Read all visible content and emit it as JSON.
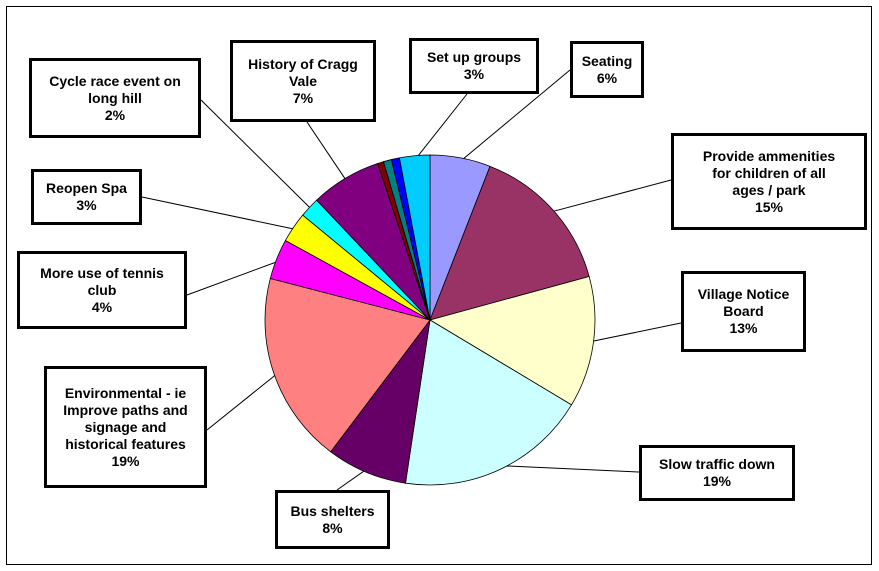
{
  "chart_data": {
    "type": "pie",
    "title": "",
    "start_angle_deg": 90,
    "direction": "clockwise",
    "slices": [
      {
        "label_lines": [
          "Seating"
        ],
        "pct_label": "6%",
        "value": 6,
        "color": "#9999ff"
      },
      {
        "label_lines": [
          "Provide ammenities",
          "for children of all",
          "ages / park"
        ],
        "pct_label": "15%",
        "value": 15,
        "color": "#993366"
      },
      {
        "label_lines": [
          "Village Notice",
          "Board"
        ],
        "pct_label": "13%",
        "value": 13,
        "color": "#ffffcc"
      },
      {
        "label_lines": [
          "Slow traffic down"
        ],
        "pct_label": "19%",
        "value": 19,
        "color": "#ccffff"
      },
      {
        "label_lines": [
          "Bus shelters"
        ],
        "pct_label": "8%",
        "value": 8,
        "color": "#660066"
      },
      {
        "label_lines": [
          "Environmental - ie",
          "Improve paths and",
          "signage and",
          "historical features"
        ],
        "pct_label": "19%",
        "value": 19,
        "color": "#ff8080"
      },
      {
        "label_lines": [
          "More use of tennis",
          "club"
        ],
        "pct_label": "4%",
        "value": 4,
        "color": "#ff00ff"
      },
      {
        "label_lines": [
          "Reopen Spa"
        ],
        "pct_label": "3%",
        "value": 3,
        "color": "#ffff00"
      },
      {
        "label_lines": [
          "Cycle race event on",
          "long hill"
        ],
        "pct_label": "2%",
        "value": 2,
        "color": "#00ffff"
      },
      {
        "label_lines": [
          "History of Cragg",
          "Vale"
        ],
        "pct_label": "7%",
        "value": 7,
        "color": "#800080"
      },
      {
        "label_lines": [],
        "pct_label": "",
        "value": 0.6,
        "color": "#800000"
      },
      {
        "label_lines": [],
        "pct_label": "",
        "value": 0.8,
        "color": "#008080"
      },
      {
        "label_lines": [],
        "pct_label": "",
        "value": 0.8,
        "color": "#0000ff"
      },
      {
        "label_lines": [
          "Set up groups"
        ],
        "pct_label": "3%",
        "value": 3,
        "color": "#00ccff"
      }
    ]
  }
}
